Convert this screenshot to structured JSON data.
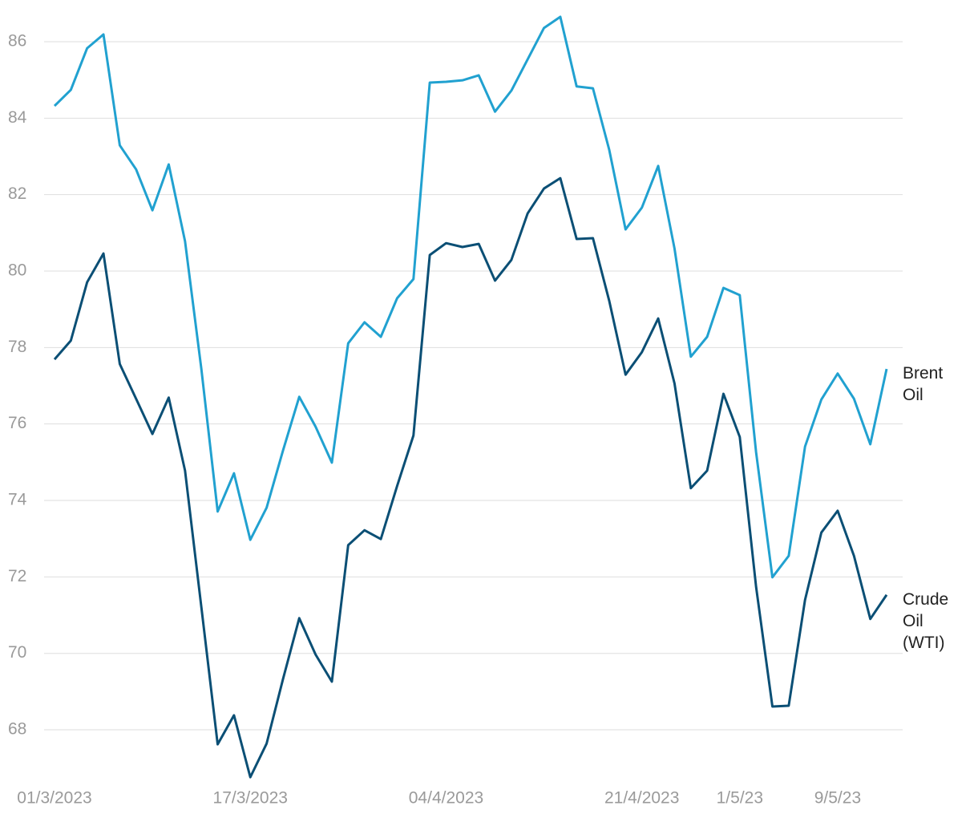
{
  "chart_data": {
    "type": "line",
    "categories": [
      "01/3/2023",
      null,
      null,
      null,
      null,
      null,
      null,
      null,
      null,
      null,
      null,
      null,
      "17/3/2023",
      null,
      null,
      null,
      null,
      null,
      null,
      null,
      null,
      null,
      null,
      null,
      "04/4/2023",
      null,
      null,
      null,
      null,
      null,
      null,
      null,
      null,
      null,
      null,
      null,
      "21/4/2023",
      null,
      null,
      null,
      null,
      null,
      "1/5/23",
      null,
      null,
      null,
      null,
      null,
      "9/5/23",
      null,
      null,
      null
    ],
    "series": [
      {
        "name": "Brent Oil",
        "color": "#21a1d0",
        "values": [
          84.32,
          84.74,
          85.83,
          86.19,
          83.29,
          82.66,
          81.59,
          82.79,
          80.78,
          77.44,
          73.71,
          74.71,
          72.97,
          73.81,
          75.3,
          76.71,
          75.93,
          74.99,
          78.11,
          78.66,
          78.28,
          79.29,
          79.79,
          84.93,
          84.95,
          84.99,
          85.12,
          84.17,
          84.72,
          85.54,
          86.36,
          86.65,
          84.83,
          84.78,
          83.17,
          81.09,
          81.66,
          82.75,
          80.59,
          77.76,
          78.28,
          79.56,
          79.37,
          75.26,
          71.99,
          72.55,
          75.41,
          76.64,
          77.32,
          76.66,
          75.47,
          77.44
        ]
      },
      {
        "name": "Crude Oil (WTI)",
        "color": "#0b4f75",
        "values": [
          77.69,
          78.18,
          79.71,
          80.46,
          77.57,
          76.66,
          75.74,
          76.69,
          74.78,
          71.21,
          67.62,
          68.38,
          66.76,
          67.64,
          69.32,
          70.92,
          69.97,
          69.26,
          72.83,
          73.22,
          72.99,
          74.38,
          75.7,
          80.42,
          80.73,
          80.63,
          80.71,
          79.75,
          80.29,
          81.51,
          82.16,
          82.43,
          80.84,
          80.86,
          79.22,
          77.29,
          77.88,
          78.76,
          77.06,
          74.32,
          74.78,
          76.79,
          75.66,
          71.74,
          68.61,
          68.63,
          71.4,
          73.16,
          73.73,
          72.55,
          70.9,
          71.53
        ]
      }
    ],
    "ylim": [
      66.7,
      87
    ],
    "yticks": [
      68,
      70,
      72,
      74,
      76,
      78,
      80,
      82,
      84,
      86
    ],
    "grid": true
  }
}
